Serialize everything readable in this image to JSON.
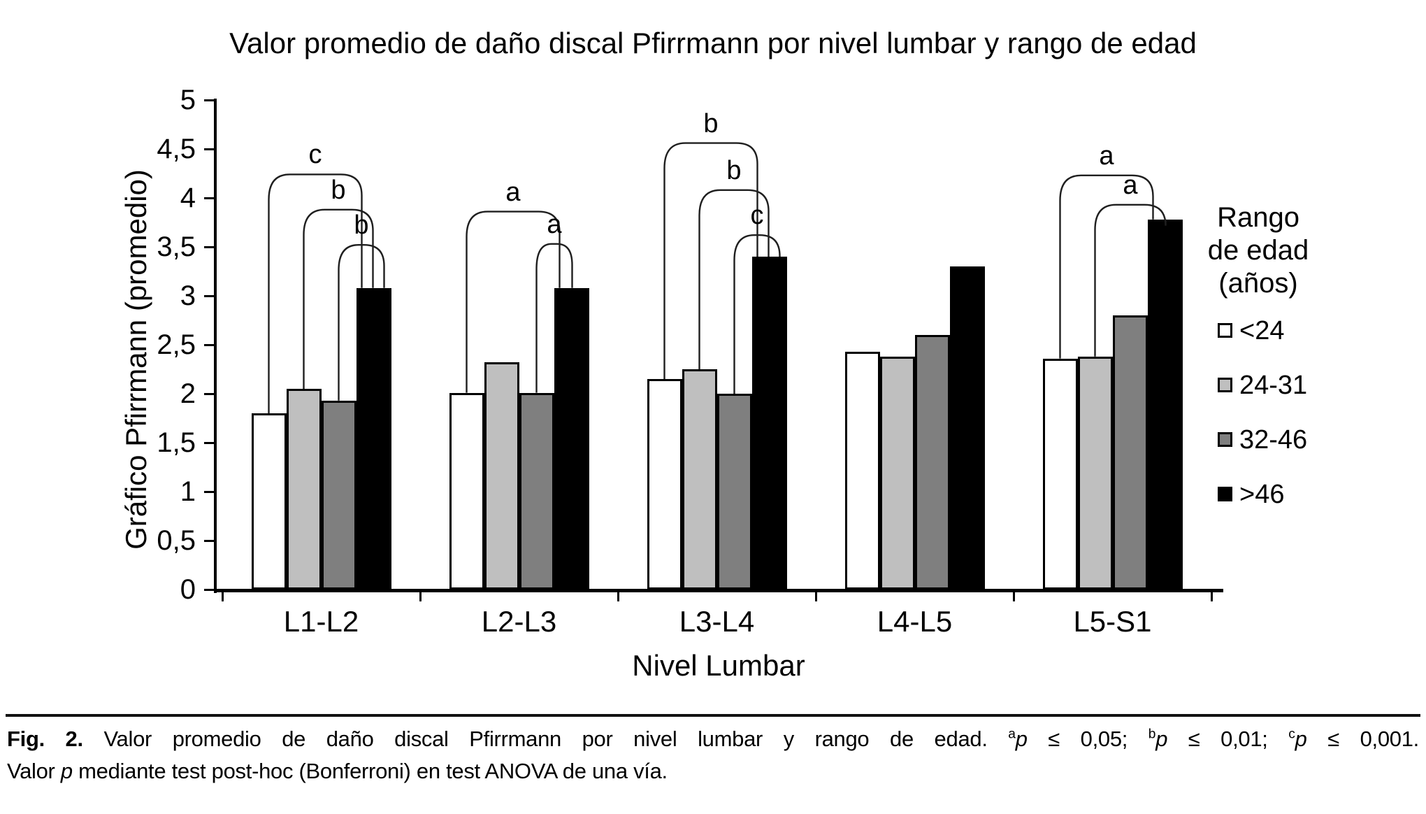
{
  "figure": {
    "title": "Valor promedio de daño discal Pfirrmann por nivel lumbar y rango de edad",
    "y_axis_label": "Gráfico Pfirrmann (promedio)",
    "x_axis_label": "Nivel Lumbar"
  },
  "legend": {
    "title_lines": [
      "Rango",
      "de edad",
      "(años)"
    ],
    "items": [
      {
        "label": "<24",
        "color": "#ffffff"
      },
      {
        "label": "24-31",
        "color": "#bfbfbf"
      },
      {
        "label": "32-46",
        "color": "#7f7f7f"
      },
      {
        "label": ">46",
        "color": "#000000"
      }
    ]
  },
  "chart_data": {
    "type": "bar",
    "title": "Valor promedio de daño discal Pfirrmann por nivel lumbar y rango de edad",
    "xlabel": "Nivel Lumbar",
    "ylabel": "Gráfico Pfirrmann (promedio)",
    "categories": [
      "L1-L2",
      "L2-L3",
      "L3-L4",
      "L4-L5",
      "L5-S1"
    ],
    "series": [
      {
        "name": "<24",
        "color": "#ffffff",
        "values": [
          1.8,
          2.01,
          2.15,
          2.43,
          2.36
        ]
      },
      {
        "name": "24-31",
        "color": "#bfbfbf",
        "values": [
          2.05,
          2.32,
          2.25,
          2.38,
          2.38
        ]
      },
      {
        "name": "32-46",
        "color": "#7f7f7f",
        "values": [
          1.93,
          2.01,
          2.0,
          2.6,
          2.8
        ]
      },
      {
        "name": ">46",
        "color": "#000000",
        "values": [
          3.08,
          3.08,
          3.4,
          3.3,
          3.78
        ]
      }
    ],
    "ylim": [
      0,
      5
    ],
    "ytick_step": 0.5,
    "ytick_labels": [
      "0",
      "0,5",
      "1",
      "1,5",
      "2",
      "2,5",
      "3",
      "3,5",
      "4",
      "4,5",
      "5"
    ],
    "grid": false,
    "legend_position": "right",
    "legend_title": "Rango de edad (años)",
    "significance_brackets": [
      {
        "category": "L1-L2",
        "from": "<24",
        "to": ">46",
        "height": 4.24,
        "label": "c"
      },
      {
        "category": "L1-L2",
        "from": "24-31",
        "to": ">46",
        "height": 3.88,
        "label": "b"
      },
      {
        "category": "L1-L2",
        "from": "32-46",
        "to": ">46",
        "height": 3.52,
        "label": "b"
      },
      {
        "category": "L2-L3",
        "from": "<24",
        "to": ">46",
        "height": 3.86,
        "label": "a"
      },
      {
        "category": "L2-L3",
        "from": "32-46",
        "to": ">46",
        "height": 3.53,
        "label": "a"
      },
      {
        "category": "L3-L4",
        "from": "<24",
        "to": ">46",
        "height": 4.56,
        "label": "b"
      },
      {
        "category": "L3-L4",
        "from": "24-31",
        "to": ">46",
        "height": 4.08,
        "label": "b"
      },
      {
        "category": "L3-L4",
        "from": "32-46",
        "to": ">46",
        "height": 3.62,
        "label": "c"
      },
      {
        "category": "L5-S1",
        "from": "<24",
        "to": ">46",
        "height": 4.23,
        "label": "a"
      },
      {
        "category": "L5-S1",
        "from": "24-31",
        "to": ">46",
        "height": 3.93,
        "label": "a"
      }
    ]
  },
  "caption": {
    "line1": [
      {
        "t": "Fig. 2.",
        "b": 1
      },
      {
        "t": " Valor promedio de daño discal Pfirrmann por nivel lumbar y rango de edad. "
      },
      {
        "t": "a",
        "sup": 1
      },
      {
        "t": "p",
        "i": 1
      },
      {
        "t": " ≤ 0,05; "
      },
      {
        "t": "b",
        "sup": 1
      },
      {
        "t": "p",
        "i": 1
      },
      {
        "t": " ≤ 0,01; "
      },
      {
        "t": "c",
        "sup": 1
      },
      {
        "t": "p",
        "i": 1
      },
      {
        "t": " ≤ 0,001."
      }
    ],
    "line2": [
      {
        "t": "Valor "
      },
      {
        "t": "p",
        "i": 1
      },
      {
        "t": " mediante test post-hoc (Bonferroni) en test ANOVA de una vía."
      }
    ]
  }
}
